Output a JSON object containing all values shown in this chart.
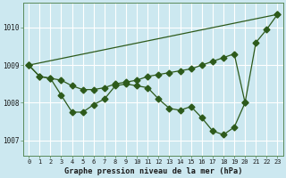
{
  "xlabel": "Graphe pression niveau de la mer (hPa)",
  "bg_color": "#cce8f0",
  "grid_color": "#ffffff",
  "line_color": "#2d5a1b",
  "ylim": [
    1006.6,
    1010.65
  ],
  "yticks": [
    1007,
    1008,
    1009,
    1010
  ],
  "xticks": [
    0,
    1,
    2,
    3,
    4,
    5,
    6,
    7,
    8,
    9,
    10,
    11,
    12,
    13,
    14,
    15,
    16,
    17,
    18,
    19,
    20,
    21,
    22,
    23
  ],
  "series1_x": [
    0,
    23
  ],
  "series1_y": [
    1009.0,
    1010.35
  ],
  "series2": [
    [
      0,
      1009.0
    ],
    [
      1,
      1008.7
    ],
    [
      2,
      1008.65
    ],
    [
      3,
      1008.6
    ],
    [
      4,
      1008.45
    ],
    [
      5,
      1008.35
    ],
    [
      6,
      1008.35
    ],
    [
      7,
      1008.4
    ],
    [
      8,
      1008.5
    ],
    [
      9,
      1008.55
    ],
    [
      10,
      1008.6
    ],
    [
      11,
      1008.7
    ],
    [
      12,
      1008.75
    ],
    [
      13,
      1008.8
    ],
    [
      14,
      1008.85
    ],
    [
      15,
      1008.9
    ],
    [
      16,
      1009.0
    ],
    [
      17,
      1009.1
    ],
    [
      18,
      1009.2
    ],
    [
      19,
      1009.3
    ],
    [
      20,
      1008.0
    ],
    [
      21,
      1009.6
    ],
    [
      22,
      1009.95
    ],
    [
      23,
      1010.35
    ]
  ],
  "series3": [
    [
      0,
      1009.0
    ],
    [
      1,
      1008.7
    ],
    [
      2,
      1008.65
    ],
    [
      3,
      1008.2
    ],
    [
      4,
      1007.75
    ],
    [
      5,
      1007.75
    ],
    [
      6,
      1007.95
    ],
    [
      7,
      1008.1
    ],
    [
      8,
      1008.45
    ],
    [
      9,
      1008.5
    ],
    [
      10,
      1008.45
    ],
    [
      11,
      1008.4
    ],
    [
      12,
      1008.1
    ],
    [
      13,
      1007.85
    ],
    [
      14,
      1007.8
    ],
    [
      15,
      1007.9
    ],
    [
      16,
      1007.6
    ],
    [
      17,
      1007.25
    ],
    [
      18,
      1007.15
    ],
    [
      19,
      1007.35
    ],
    [
      20,
      1008.0
    ]
  ]
}
